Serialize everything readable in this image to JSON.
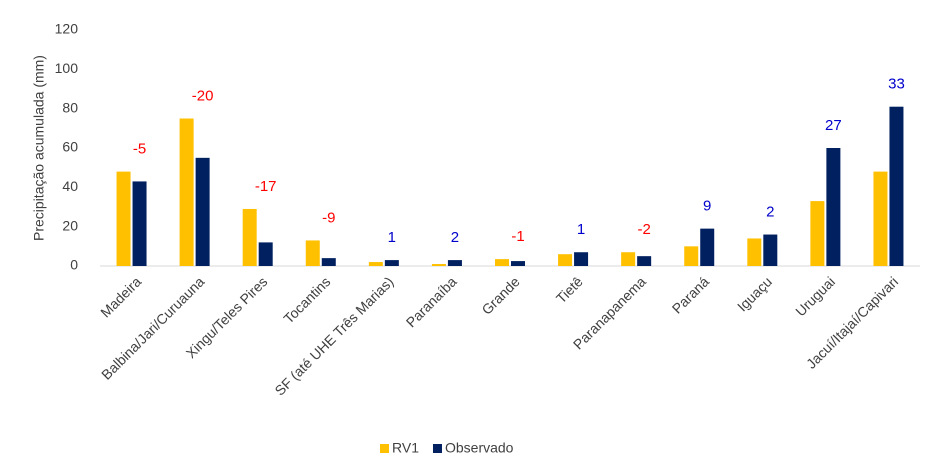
{
  "chart_data": {
    "type": "bar",
    "y_label": "Precipitação acumulada (mm)",
    "categories": [
      "Madeira",
      "Balbina/Jari/Curuauna",
      "Xingu/Teles Pires",
      "Tocantins",
      "SF (até UHE Três Marias)",
      "Paranaíba",
      "Grande",
      "Tietê",
      "Paranapanema",
      "Paraná",
      "Iguaçu",
      "Uruguai",
      "Jacuí/Itajaí/Capivari"
    ],
    "series": [
      {
        "name": "RV1",
        "color": "#ffc000",
        "values": [
          48,
          75,
          29,
          13,
          2,
          1,
          3.5,
          6,
          7,
          10,
          14,
          33,
          48
        ]
      },
      {
        "name": "Observado",
        "color": "#002060",
        "values": [
          43,
          55,
          12,
          4,
          3,
          3,
          2.5,
          7,
          5,
          19,
          16,
          60,
          81
        ]
      }
    ],
    "differences": [
      -5,
      -20,
      -17,
      -9,
      1,
      2,
      -1,
      1,
      -2,
      9,
      2,
      27,
      33
    ],
    "negative_color": "#ff0000",
    "positive_color": "#0000cc",
    "ylim": [
      0,
      120
    ],
    "yticks": [
      0,
      20,
      40,
      60,
      80,
      100,
      120
    ],
    "grid": false,
    "legend": "bottom"
  }
}
